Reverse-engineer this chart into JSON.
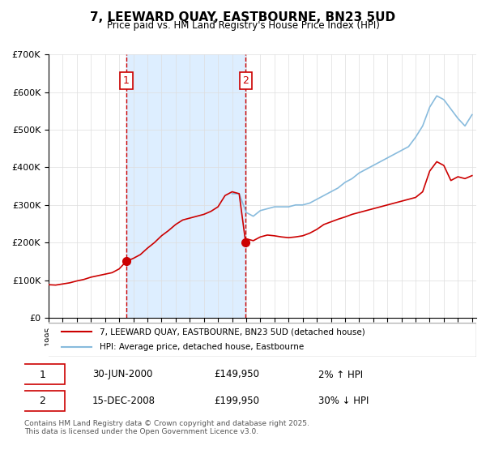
{
  "title": "7, LEEWARD QUAY, EASTBOURNE, BN23 5UD",
  "subtitle": "Price paid vs. HM Land Registry's House Price Index (HPI)",
  "legend_line1": "7, LEEWARD QUAY, EASTBOURNE, BN23 5UD (detached house)",
  "legend_line2": "HPI: Average price, detached house, Eastbourne",
  "footnote": "Contains HM Land Registry data © Crown copyright and database right 2025.\nThis data is licensed under the Open Government Licence v3.0.",
  "sale1_label": "1",
  "sale1_date": "30-JUN-2000",
  "sale1_price": "£149,950",
  "sale1_hpi": "2% ↑ HPI",
  "sale2_label": "2",
  "sale2_date": "15-DEC-2008",
  "sale2_price": "£199,950",
  "sale2_hpi": "30% ↓ HPI",
  "marker1_x": 2000.5,
  "marker1_y": 149950,
  "marker2_x": 2008.96,
  "marker2_y": 199950,
  "vline1_x": 2000.5,
  "vline2_x": 2008.96,
  "shade_color": "#ddeeff",
  "vline_color": "#cc0000",
  "red_line_color": "#cc0000",
  "blue_line_color": "#88bbdd",
  "ylim": [
    0,
    700000
  ],
  "xlim_start": 1995.0,
  "xlim_end": 2025.3,
  "hpi_red_data": {
    "x": [
      1995.0,
      1995.5,
      1996.0,
      1996.5,
      1997.0,
      1997.5,
      1998.0,
      1998.5,
      1999.0,
      1999.5,
      2000.0,
      2000.5,
      2001.0,
      2001.5,
      2002.0,
      2002.5,
      2003.0,
      2003.5,
      2004.0,
      2004.5,
      2005.0,
      2005.5,
      2006.0,
      2006.5,
      2007.0,
      2007.5,
      2008.0,
      2008.5,
      2008.96,
      2009.0,
      2009.5,
      2010.0,
      2010.5,
      2011.0,
      2011.5,
      2012.0,
      2012.5,
      2013.0,
      2013.5,
      2014.0,
      2014.5,
      2015.0,
      2015.5,
      2016.0,
      2016.5,
      2017.0,
      2017.5,
      2018.0,
      2018.5,
      2019.0,
      2019.5,
      2020.0,
      2020.5,
      2021.0,
      2021.5,
      2022.0,
      2022.5,
      2023.0,
      2023.5,
      2024.0,
      2024.5,
      2025.0
    ],
    "y": [
      88000,
      87000,
      90000,
      93000,
      98000,
      102000,
      108000,
      112000,
      116000,
      120000,
      130000,
      149950,
      158000,
      168000,
      185000,
      200000,
      218000,
      232000,
      248000,
      260000,
      265000,
      270000,
      275000,
      283000,
      295000,
      325000,
      335000,
      330000,
      199950,
      210000,
      205000,
      215000,
      220000,
      218000,
      215000,
      213000,
      215000,
      218000,
      225000,
      235000,
      248000,
      255000,
      262000,
      268000,
      275000,
      280000,
      285000,
      290000,
      295000,
      300000,
      305000,
      310000,
      315000,
      320000,
      335000,
      390000,
      415000,
      405000,
      365000,
      375000,
      370000,
      378000
    ]
  },
  "hpi_blue_data": {
    "x": [
      2008.0,
      2008.5,
      2009.0,
      2009.5,
      2010.0,
      2010.5,
      2011.0,
      2011.5,
      2012.0,
      2012.5,
      2013.0,
      2013.5,
      2014.0,
      2014.5,
      2015.0,
      2015.5,
      2016.0,
      2016.5,
      2017.0,
      2017.5,
      2018.0,
      2018.5,
      2019.0,
      2019.5,
      2020.0,
      2020.5,
      2021.0,
      2021.5,
      2022.0,
      2022.5,
      2023.0,
      2023.5,
      2024.0,
      2024.5,
      2025.0
    ],
    "y": [
      330000,
      330000,
      280000,
      270000,
      285000,
      290000,
      295000,
      295000,
      295000,
      300000,
      300000,
      305000,
      315000,
      325000,
      335000,
      345000,
      360000,
      370000,
      385000,
      395000,
      405000,
      415000,
      425000,
      435000,
      445000,
      455000,
      480000,
      510000,
      560000,
      590000,
      580000,
      555000,
      530000,
      510000,
      540000
    ]
  }
}
